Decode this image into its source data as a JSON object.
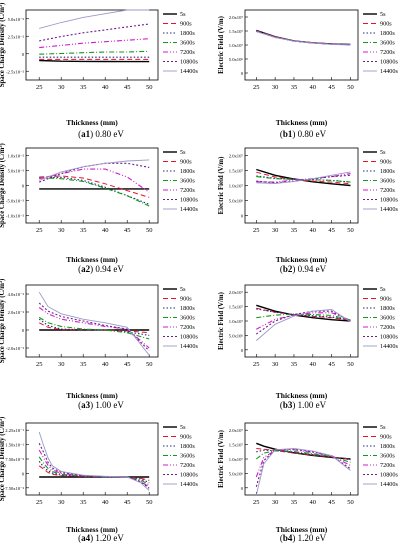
{
  "legend_labels": [
    "5s",
    "900s",
    "1800s",
    "3600s",
    "7200s",
    "10800s",
    "14400s"
  ],
  "series_styles": [
    {
      "color": "#000000",
      "dash": "",
      "width": 1.4
    },
    {
      "color": "#e8132d",
      "dash": "5,3",
      "width": 1.0
    },
    {
      "color": "#1f2a7a",
      "dash": "1.5,2",
      "width": 1.1
    },
    {
      "color": "#129b18",
      "dash": "5,2,1,2",
      "width": 1.1
    },
    {
      "color": "#d21ad2",
      "dash": "5,2,1,2,1,2",
      "width": 1.1
    },
    {
      "color": "#6c1e8a",
      "dash": "2,2",
      "width": 1.1
    },
    {
      "color": "#9a9ac8",
      "dash": "",
      "width": 0.9
    }
  ],
  "panels": [
    {
      "id": "a1",
      "caption_tag": "a1",
      "caption_text": " 0.80 eV",
      "xlabel": "Thickness (mm)",
      "ylabel": "Space Charge Density (C/m³)",
      "xticks": [
        "25",
        "30",
        "35",
        "40",
        "45",
        "50"
      ],
      "yticks": [
        "-2.5x10⁻²",
        "0",
        "2.5x10⁻²",
        "5.0x10⁻²"
      ]
    },
    {
      "id": "b1",
      "caption_tag": "b1",
      "caption_text": " 0.80 eV",
      "xlabel": "Thickness (mm)",
      "ylabel": "Electric Field (V/m)",
      "xticks": [
        "25",
        "30",
        "35",
        "40",
        "45",
        "50"
      ],
      "yticks": [
        "0",
        "5.0x10⁶",
        "1.0x10⁷",
        "1.5x10⁷",
        "2.0x10⁷"
      ]
    },
    {
      "id": "a2",
      "caption_tag": "a2",
      "caption_text": " 0.94 eV",
      "xlabel": "Thickness (mm)",
      "ylabel": "Space Charge Density (C/m³)",
      "xticks": [
        "25",
        "30",
        "35",
        "40",
        "45",
        "50"
      ],
      "yticks": [
        "-1.0x10⁻²",
        "-5.0x10⁻³",
        "0",
        "5.0x10⁻³",
        "1.0x10⁻²"
      ]
    },
    {
      "id": "b2",
      "caption_tag": "b2",
      "caption_text": " 0.94 eV",
      "xlabel": "Thickness (mm)",
      "ylabel": "Electric Field (V/m)",
      "xticks": [
        "25",
        "30",
        "35",
        "40",
        "45",
        "50"
      ],
      "yticks": [
        "0",
        "5.0x10⁶",
        "1.0x10⁷",
        "1.5x10⁷",
        "2.0x10⁷"
      ]
    },
    {
      "id": "a3",
      "caption_tag": "a3",
      "caption_text": " 1.00 eV",
      "xlabel": "Thickness (mm)",
      "ylabel": "Space Charge Density (C/m³)",
      "xticks": [
        "25",
        "30",
        "35",
        "40",
        "45",
        "50"
      ],
      "yticks": [
        "-2.0x10⁻²",
        "0",
        "2.0x10⁻²",
        "4.0x10⁻²"
      ]
    },
    {
      "id": "b3",
      "caption_tag": "b3",
      "caption_text": " 1.00 eV",
      "xlabel": "Thickness (mm)",
      "ylabel": "Electric Field (V/m)",
      "xticks": [
        "25",
        "30",
        "35",
        "40",
        "45",
        "50"
      ],
      "yticks": [
        "0",
        "5.0x10⁶",
        "1.0x10⁷",
        "1.5x10⁷",
        "2.0x10⁷"
      ]
    },
    {
      "id": "a4",
      "caption_tag": "a4",
      "caption_text": " 1.20 eV",
      "xlabel": "Thickness (mm)",
      "ylabel": "Space Charge Density (C/m³)",
      "xticks": [
        "25",
        "30",
        "35",
        "40",
        "45",
        "50"
      ],
      "yticks": [
        "-7.50x10⁻²",
        "0",
        "7.50x10⁻²",
        "1.50x10⁻¹",
        "2.25x10⁻¹"
      ]
    },
    {
      "id": "b4",
      "caption_tag": "b4",
      "caption_text": " 1.20 eV",
      "xlabel": "Thickness (mm)",
      "ylabel": "Electric Field (V/m)",
      "xticks": [
        "25",
        "30",
        "35",
        "40",
        "45",
        "50"
      ],
      "yticks": [
        "0",
        "5.0x10⁶",
        "1.0x10⁷",
        "1.5x10⁷",
        "2.0x10⁷"
      ]
    }
  ],
  "chart_data": [
    {
      "type": "line",
      "xlim": [
        22,
        52
      ],
      "ylim": [
        -0.025,
        0.07
      ],
      "x": [
        25,
        30,
        35,
        40,
        45,
        50
      ],
      "series": [
        {
          "name": "5s",
          "values": [
            0.0015,
            0.0005,
            0.0002,
            0.0001,
            0.0,
            0.0
          ]
        },
        {
          "name": "900s",
          "values": [
            0.003,
            0.003,
            0.003,
            0.003,
            0.003,
            0.003
          ]
        },
        {
          "name": "1800s",
          "values": [
            0.006,
            0.006,
            0.006,
            0.006,
            0.006,
            0.006
          ]
        },
        {
          "name": "3600s",
          "values": [
            0.01,
            0.011,
            0.012,
            0.013,
            0.013,
            0.014
          ]
        },
        {
          "name": "7200s",
          "values": [
            0.019,
            0.022,
            0.025,
            0.027,
            0.029,
            0.031
          ]
        },
        {
          "name": "10800s",
          "values": [
            0.028,
            0.034,
            0.039,
            0.043,
            0.047,
            0.051
          ]
        },
        {
          "name": "14400s",
          "values": [
            0.045,
            0.053,
            0.06,
            0.065,
            0.07,
            0.074
          ]
        }
      ]
    },
    {
      "type": "line",
      "xlim": [
        22,
        52
      ],
      "ylim": [
        0,
        22000000
      ],
      "x": [
        25,
        30,
        35,
        40,
        45,
        50
      ],
      "series": [
        {
          "name": "5s",
          "values": [
            15600000,
            13600000,
            12300000,
            11700000,
            11300000,
            11200000
          ]
        },
        {
          "name": "900s",
          "values": [
            15500000,
            13600000,
            12300000,
            11700000,
            11300000,
            11100000
          ]
        },
        {
          "name": "1800s",
          "values": [
            15500000,
            13500000,
            12300000,
            11700000,
            11300000,
            11100000
          ]
        },
        {
          "name": "3600s",
          "values": [
            15400000,
            13500000,
            12300000,
            11700000,
            11300000,
            11100000
          ]
        },
        {
          "name": "7200s",
          "values": [
            15300000,
            13500000,
            12300000,
            11700000,
            11300000,
            11100000
          ]
        },
        {
          "name": "10800s",
          "values": [
            15300000,
            13400000,
            12300000,
            11600000,
            11300000,
            11100000
          ]
        },
        {
          "name": "14400s",
          "values": [
            15200000,
            13400000,
            12200000,
            11600000,
            11200000,
            11000000
          ]
        }
      ]
    },
    {
      "type": "line",
      "xlim": [
        22,
        52
      ],
      "ylim": [
        -0.01,
        0.012
      ],
      "x": [
        25,
        30,
        35,
        40,
        45,
        50
      ],
      "series": [
        {
          "name": "5s",
          "values": [
            0.0,
            0.0,
            0.0,
            0.0,
            0.0,
            0.0
          ]
        },
        {
          "name": "900s",
          "values": [
            0.0035,
            0.0038,
            0.0032,
            0.0015,
            -0.0005,
            -0.0025
          ]
        },
        {
          "name": "1800s",
          "values": [
            0.0032,
            0.0034,
            0.0025,
            0.0005,
            -0.002,
            -0.0045
          ]
        },
        {
          "name": "3600s",
          "values": [
            0.0033,
            0.003,
            0.0022,
            0.0002,
            -0.002,
            -0.005
          ]
        },
        {
          "name": "7200s",
          "values": [
            0.003,
            0.0045,
            0.0058,
            0.0058,
            0.0035,
            -0.001
          ]
        },
        {
          "name": "10800s",
          "values": [
            0.002,
            0.0045,
            0.0065,
            0.0075,
            0.0075,
            0.0063
          ]
        },
        {
          "name": "14400s",
          "values": [
            0.0025,
            0.005,
            0.0065,
            0.0075,
            0.0082,
            0.0085
          ]
        }
      ]
    },
    {
      "type": "line",
      "xlim": [
        22,
        52
      ],
      "ylim": [
        0,
        22000000
      ],
      "x": [
        25,
        30,
        35,
        40,
        45,
        50
      ],
      "series": [
        {
          "name": "5s",
          "values": [
            15700000,
            14000000,
            12900000,
            12100000,
            11500000,
            11000000
          ]
        },
        {
          "name": "900s",
          "values": [
            14900000,
            13500000,
            12800000,
            12300000,
            12000000,
            11500000
          ]
        },
        {
          "name": "1800s",
          "values": [
            13800000,
            13100000,
            12800000,
            12700000,
            12500000,
            12000000
          ]
        },
        {
          "name": "3600s",
          "values": [
            13600000,
            13000000,
            12800000,
            12700000,
            12500000,
            12000000
          ]
        },
        {
          "name": "7200s",
          "values": [
            12100000,
            12000000,
            12600000,
            13000000,
            13600000,
            14500000
          ]
        },
        {
          "name": "10800s",
          "values": [
            12300000,
            11800000,
            12200000,
            12900000,
            13600000,
            14000000
          ]
        },
        {
          "name": "14400s",
          "values": [
            11800000,
            11600000,
            12200000,
            13000000,
            14000000,
            15000000
          ]
        }
      ]
    },
    {
      "type": "line",
      "xlim": [
        22,
        52
      ],
      "ylim": [
        -0.03,
        0.05
      ],
      "x": [
        25,
        27,
        30,
        35,
        40,
        45,
        50
      ],
      "series": [
        {
          "name": "5s",
          "values": [
            0,
            0,
            0,
            0,
            0,
            0,
            0
          ]
        },
        {
          "name": "900s",
          "values": [
            0.008,
            0.003,
            0.0005,
            0.0002,
            0.0,
            -0.001,
            -0.003
          ]
        },
        {
          "name": "1800s",
          "values": [
            0.012,
            0.005,
            0.001,
            0.0003,
            0.0,
            -0.002,
            -0.006
          ]
        },
        {
          "name": "3600s",
          "values": [
            0.014,
            0.008,
            0.004,
            0.001,
            0.0,
            -0.003,
            -0.01
          ]
        },
        {
          "name": "7200s",
          "values": [
            0.025,
            0.018,
            0.012,
            0.008,
            0.004,
            0.001,
            -0.02
          ]
        },
        {
          "name": "10800s",
          "values": [
            0.03,
            0.021,
            0.015,
            0.01,
            0.005,
            0.001,
            -0.023
          ]
        },
        {
          "name": "14400s",
          "values": [
            0.042,
            0.026,
            0.018,
            0.012,
            0.008,
            0.003,
            -0.028
          ]
        }
      ]
    },
    {
      "type": "line",
      "xlim": [
        22,
        52
      ],
      "ylim": [
        0,
        22000000
      ],
      "x": [
        25,
        30,
        35,
        40,
        45,
        50
      ],
      "series": [
        {
          "name": "5s",
          "values": [
            15800000,
            14000000,
            12800000,
            12000000,
            11400000,
            11000000
          ]
        },
        {
          "name": "900s",
          "values": [
            14900000,
            13700000,
            12900000,
            12400000,
            12000000,
            11200000
          ]
        },
        {
          "name": "1800s",
          "values": [
            14700000,
            13700000,
            13000000,
            12600000,
            12200000,
            11300000
          ]
        },
        {
          "name": "3600s",
          "values": [
            12000000,
            12800000,
            13100000,
            13000000,
            12700000,
            11300000
          ]
        },
        {
          "name": "7200s",
          "values": [
            8500000,
            11500000,
            12800000,
            13500000,
            13500000,
            11200000
          ]
        },
        {
          "name": "10800s",
          "values": [
            7000000,
            11000000,
            13000000,
            14000000,
            14000000,
            11000000
          ]
        },
        {
          "name": "14400s",
          "values": [
            5000000,
            10000000,
            12500000,
            14000000,
            14500000,
            10800000
          ]
        }
      ]
    },
    {
      "type": "line",
      "xlim": [
        22,
        52
      ],
      "ylim": [
        -0.08,
        0.24
      ],
      "x": [
        25,
        26,
        27,
        28,
        30,
        35,
        40,
        45,
        48,
        50
      ],
      "series": [
        {
          "name": "5s",
          "values": [
            0,
            0,
            0,
            0,
            0,
            0,
            0,
            0,
            0,
            0
          ]
        },
        {
          "name": "900s",
          "values": [
            0.05,
            0.035,
            0.02,
            0.012,
            0.006,
            0.002,
            0.001,
            0.0,
            -0.005,
            -0.015
          ]
        },
        {
          "name": "1800s",
          "values": [
            0.07,
            0.045,
            0.028,
            0.017,
            0.008,
            0.003,
            0.001,
            0.0,
            -0.008,
            -0.025
          ]
        },
        {
          "name": "3600s",
          "values": [
            0.09,
            0.06,
            0.038,
            0.024,
            0.012,
            0.004,
            0.001,
            0.0,
            -0.012,
            -0.035
          ]
        },
        {
          "name": "7200s",
          "values": [
            0.12,
            0.085,
            0.052,
            0.032,
            0.016,
            0.005,
            0.002,
            0.0,
            -0.018,
            -0.045
          ]
        },
        {
          "name": "10800s",
          "values": [
            0.15,
            0.11,
            0.065,
            0.04,
            0.02,
            0.006,
            0.002,
            0.0,
            -0.02,
            -0.05
          ]
        },
        {
          "name": "14400s",
          "values": [
            0.2,
            0.14,
            0.085,
            0.05,
            0.025,
            0.008,
            0.003,
            0.0,
            -0.025,
            -0.06
          ]
        }
      ]
    },
    {
      "type": "line",
      "xlim": [
        22,
        52
      ],
      "ylim": [
        0,
        22000000
      ],
      "x": [
        25,
        27,
        30,
        35,
        40,
        45,
        50
      ],
      "series": [
        {
          "name": "5s",
          "values": [
            15800000,
            14900000,
            14000000,
            12900000,
            12100000,
            11500000,
            11000000
          ]
        },
        {
          "name": "900s",
          "values": [
            14200000,
            14000000,
            13600000,
            12800000,
            12200000,
            11600000,
            11000000
          ]
        },
        {
          "name": "1800s",
          "values": [
            13200000,
            13700000,
            13600000,
            13000000,
            12300000,
            11700000,
            10800000
          ]
        },
        {
          "name": "3600s",
          "values": [
            11000000,
            12800000,
            13500000,
            13300000,
            12600000,
            11800000,
            10000000
          ]
        },
        {
          "name": "7200s",
          "values": [
            5500000,
            11500000,
            13600000,
            13800000,
            13000000,
            12000000,
            9000000
          ]
        },
        {
          "name": "10800s",
          "values": [
            2500000,
            10500000,
            13800000,
            14000000,
            13200000,
            12000000,
            8000000
          ]
        },
        {
          "name": "14400s",
          "values": [
            0,
            9500000,
            13800000,
            14200000,
            13400000,
            12000000,
            7500000
          ]
        }
      ]
    }
  ]
}
